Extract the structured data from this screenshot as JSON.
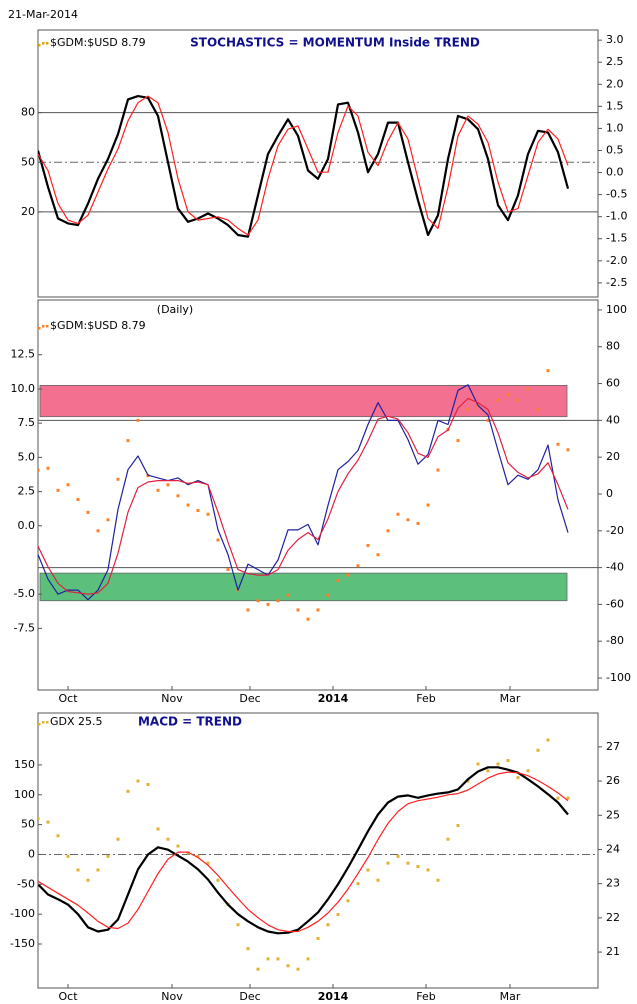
{
  "chart_data": [
    {
      "type": "line",
      "date": "21-Mar-2014",
      "title": "STOCHASTICS = MOMENTUM Inside TREND",
      "legend": "$GDM:$USD 8.79",
      "legend_color": "#d9a400",
      "x": [
        0,
        1,
        2,
        3,
        4,
        5,
        6,
        7,
        8,
        9,
        10,
        11,
        12,
        13,
        14,
        15,
        16,
        17,
        18,
        19,
        20,
        21,
        22,
        23,
        24,
        25,
        26,
        27,
        28,
        29,
        30,
        31,
        32,
        33,
        34,
        35,
        36,
        37,
        38,
        39,
        40,
        41,
        42,
        43,
        44,
        45,
        46,
        47,
        48,
        49,
        50,
        51,
        52,
        53
      ],
      "xlim": [
        0,
        56
      ],
      "ylim": [
        -31.5,
        130
      ],
      "yticks": [
        80,
        50,
        20
      ],
      "y2lim": [
        -2.82,
        3.23
      ],
      "y2ticks": [
        {
          "value": 3,
          "label": "3.0"
        },
        2.5,
        {
          "value": 2,
          "label": "2.0"
        },
        1.5,
        {
          "value": 1,
          "label": "1.0"
        },
        0.5,
        {
          "value": 0,
          "label": "0.0"
        },
        -0.5,
        {
          "value": -1,
          "label": "-1.0"
        },
        -1.5,
        {
          "value": -2,
          "label": "-2.0"
        },
        -2.5
      ],
      "hlines": [
        80,
        20
      ],
      "dashed_hlines": [
        50
      ],
      "series": [
        {
          "color": "#000000",
          "style": "line",
          "width": 2.2,
          "values": [
            57,
            35,
            16,
            13,
            12,
            25,
            40,
            52,
            67,
            88,
            90,
            89,
            78,
            50,
            22,
            14,
            16,
            19,
            16,
            12,
            6,
            5,
            30,
            55,
            66,
            76,
            66,
            45,
            40,
            52,
            85,
            86,
            68,
            44,
            55,
            74,
            74,
            50,
            27,
            6,
            18,
            52,
            78,
            76,
            70,
            52,
            24,
            15,
            30,
            55,
            69,
            68,
            56,
            34
          ]
        },
        {
          "color": "#ff2020",
          "style": "line",
          "width": 1.2,
          "values": [
            55,
            45,
            25,
            15,
            13,
            18,
            32,
            46,
            58,
            75,
            86,
            90,
            86,
            68,
            40,
            20,
            15,
            16,
            17,
            15,
            10,
            6,
            15,
            40,
            60,
            70,
            72,
            58,
            44,
            44,
            68,
            84,
            78,
            56,
            48,
            63,
            74,
            64,
            40,
            16,
            10,
            35,
            66,
            78,
            73,
            62,
            38,
            20,
            22,
            42,
            62,
            70,
            64,
            48
          ]
        }
      ]
    },
    {
      "type": "line",
      "title": "(Daily)",
      "x": [
        0,
        1,
        2,
        3,
        4,
        5,
        6,
        7,
        8,
        9,
        10,
        11,
        12,
        13,
        14,
        15,
        16,
        17,
        18,
        19,
        20,
        21,
        22,
        23,
        24,
        25,
        26,
        27,
        28,
        29,
        30,
        31,
        32,
        33,
        34,
        35,
        36,
        37,
        38,
        39,
        40,
        41,
        42,
        43,
        44,
        45,
        46,
        47,
        48,
        49,
        50,
        51,
        52,
        53
      ],
      "xlim": [
        0,
        56
      ],
      "xticks": [
        {
          "value": 3,
          "label": "Oct"
        },
        {
          "value": 13.4,
          "label": "Nov"
        },
        {
          "value": 21.2,
          "label": "Dec"
        },
        {
          "value": 29.5,
          "label": "2014"
        },
        {
          "value": 38.8,
          "label": "Feb"
        },
        {
          "value": 47.2,
          "label": "Mar"
        }
      ],
      "ylim": [
        -12,
        16.5
      ],
      "yticks": [
        12.5,
        {
          "value": 10,
          "label": "10.0"
        },
        7.5,
        {
          "value": 5,
          "label": "5.0"
        },
        2.5,
        {
          "value": 0,
          "label": "0.0"
        },
        {
          "value": -5,
          "label": "-5.0"
        },
        -7.5
      ],
      "y2lim": [
        -106.5,
        105.4
      ],
      "y2ticks": [
        100,
        80,
        60,
        40,
        20,
        0,
        -20,
        -40,
        -60,
        -80,
        -100
      ],
      "hlines_y2": [
        40,
        -40
      ],
      "bands": [
        {
          "y2": [
            42,
            59
          ],
          "color": "#f47090"
        },
        {
          "y2": [
            -58,
            -43
          ],
          "color": "#5cc07c"
        }
      ],
      "series": [
        {
          "name": "$GDM:$USD 8.79",
          "color": "#ff7f27",
          "style": "dots",
          "axis": "y2",
          "values": [
            13,
            14,
            2,
            5,
            -3,
            -10,
            -20,
            -14,
            8,
            29,
            40,
            10,
            2,
            5,
            -1,
            -6,
            -9,
            -11,
            -25,
            -41,
            -52,
            -63,
            -58,
            -60,
            -58,
            -55,
            -63,
            -68,
            -63,
            -55,
            -47,
            -44,
            -39,
            -28,
            -33,
            -20,
            -11,
            -14,
            -16,
            -6,
            13,
            35,
            29,
            46,
            48,
            40,
            51,
            54,
            51,
            57,
            46,
            67,
            27,
            24
          ]
        },
        {
          "color": "#2020a0",
          "style": "line",
          "width": 1.2,
          "values": [
            -2.1,
            -3.9,
            -5.0,
            -4.7,
            -4.7,
            -5.4,
            -4.7,
            -3.2,
            1.2,
            4.1,
            5.1,
            3.7,
            3.5,
            3.3,
            3.5,
            3.0,
            3.3,
            3.0,
            -0.3,
            -2.1,
            -4.7,
            -2.8,
            -3.2,
            -3.6,
            -2.5,
            -0.3,
            -0.3,
            0.1,
            -1.4,
            1.5,
            4.1,
            4.7,
            5.5,
            7.4,
            9.0,
            7.7,
            7.7,
            6.3,
            4.5,
            5.2,
            7.7,
            7.4,
            9.9,
            10.3,
            8.8,
            8.1,
            5.5,
            3.0,
            3.7,
            3.4,
            4.1,
            5.9,
            1.9,
            -0.5
          ]
        },
        {
          "color": "#e02040",
          "style": "line",
          "width": 1.2,
          "values": [
            -1.5,
            -3.0,
            -4.2,
            -4.8,
            -4.9,
            -5.0,
            -4.9,
            -4.2,
            -2.0,
            1.0,
            2.8,
            3.2,
            3.3,
            3.3,
            3.3,
            3.1,
            3.2,
            3.0,
            1.0,
            -1.2,
            -3.2,
            -3.5,
            -3.6,
            -3.6,
            -3.2,
            -1.8,
            -1.0,
            -0.5,
            -1.0,
            0.5,
            2.5,
            3.8,
            4.8,
            6.2,
            7.8,
            8.0,
            7.8,
            6.8,
            5.3,
            5.0,
            6.5,
            7.0,
            8.6,
            9.3,
            9.0,
            8.5,
            6.8,
            4.6,
            3.9,
            3.5,
            3.8,
            4.6,
            3.0,
            1.2
          ]
        }
      ]
    },
    {
      "type": "line",
      "title": "MACD = TREND",
      "x": [
        0,
        1,
        2,
        3,
        4,
        5,
        6,
        7,
        8,
        9,
        10,
        11,
        12,
        13,
        14,
        15,
        16,
        17,
        18,
        19,
        20,
        21,
        22,
        23,
        24,
        25,
        26,
        27,
        28,
        29,
        30,
        31,
        32,
        33,
        34,
        35,
        36,
        37,
        38,
        39,
        40,
        41,
        42,
        43,
        44,
        45,
        46,
        47,
        48,
        49,
        50,
        51,
        52,
        53
      ],
      "xlim": [
        0,
        56
      ],
      "xticks": [
        {
          "value": 3,
          "label": "Oct"
        },
        {
          "value": 13.4,
          "label": "Nov"
        },
        {
          "value": 21.2,
          "label": "Dec"
        },
        {
          "value": 29.5,
          "label": "2014"
        },
        {
          "value": 38.8,
          "label": "Feb"
        },
        {
          "value": 47.2,
          "label": "Mar"
        }
      ],
      "ylim": [
        -223.7,
        237
      ],
      "yticks": [
        150,
        100,
        50,
        0,
        -50,
        -100,
        -150
      ],
      "y2lim": [
        19.95,
        27.99
      ],
      "y2ticks": [
        27,
        26,
        25,
        24,
        23,
        22,
        21
      ],
      "dashed_hlines": [
        0
      ],
      "series": [
        {
          "name": "GDX 25.5",
          "color": "#e0b030",
          "style": "dots",
          "axis": "y2",
          "values": [
            24.9,
            24.8,
            24.4,
            23.8,
            23.4,
            23.1,
            23.4,
            23.8,
            24.3,
            25.7,
            26.0,
            25.9,
            24.6,
            24.3,
            24.1,
            23.9,
            23.8,
            23.6,
            23.1,
            22.4,
            21.8,
            21.1,
            20.5,
            20.8,
            20.8,
            20.6,
            20.5,
            20.8,
            21.4,
            21.8,
            22.1,
            22.5,
            23.0,
            23.4,
            23.1,
            23.6,
            23.8,
            23.6,
            23.5,
            23.4,
            23.1,
            24.3,
            24.7,
            26.0,
            26.5,
            26.3,
            26.5,
            26.6,
            26.1,
            26.3,
            26.9,
            27.2,
            25.5,
            25.5
          ]
        },
        {
          "color": "#000000",
          "style": "line",
          "width": 2.2,
          "values": [
            -50,
            -67,
            -75,
            -84,
            -100,
            -122,
            -129,
            -126,
            -109,
            -67,
            -25,
            0,
            12,
            8,
            -2,
            -12,
            -25,
            -42,
            -64,
            -84,
            -100,
            -112,
            -122,
            -129,
            -132,
            -131,
            -126,
            -112,
            -97,
            -75,
            -50,
            -22,
            8,
            39,
            67,
            87,
            97,
            99,
            95,
            99,
            102,
            104,
            109,
            126,
            139,
            146,
            146,
            142,
            137,
            126,
            114,
            101,
            87,
            67
          ]
        },
        {
          "color": "#ff2020",
          "style": "line",
          "width": 1.2,
          "values": [
            -45,
            -55,
            -65,
            -75,
            -85,
            -98,
            -112,
            -122,
            -124,
            -115,
            -92,
            -62,
            -32,
            -8,
            4,
            4,
            -5,
            -18,
            -35,
            -55,
            -74,
            -92,
            -106,
            -118,
            -126,
            -129,
            -129,
            -122,
            -112,
            -98,
            -80,
            -58,
            -32,
            -5,
            25,
            52,
            72,
            85,
            90,
            93,
            96,
            100,
            102,
            108,
            118,
            128,
            135,
            138,
            137,
            132,
            124,
            114,
            103,
            90
          ]
        }
      ]
    }
  ]
}
